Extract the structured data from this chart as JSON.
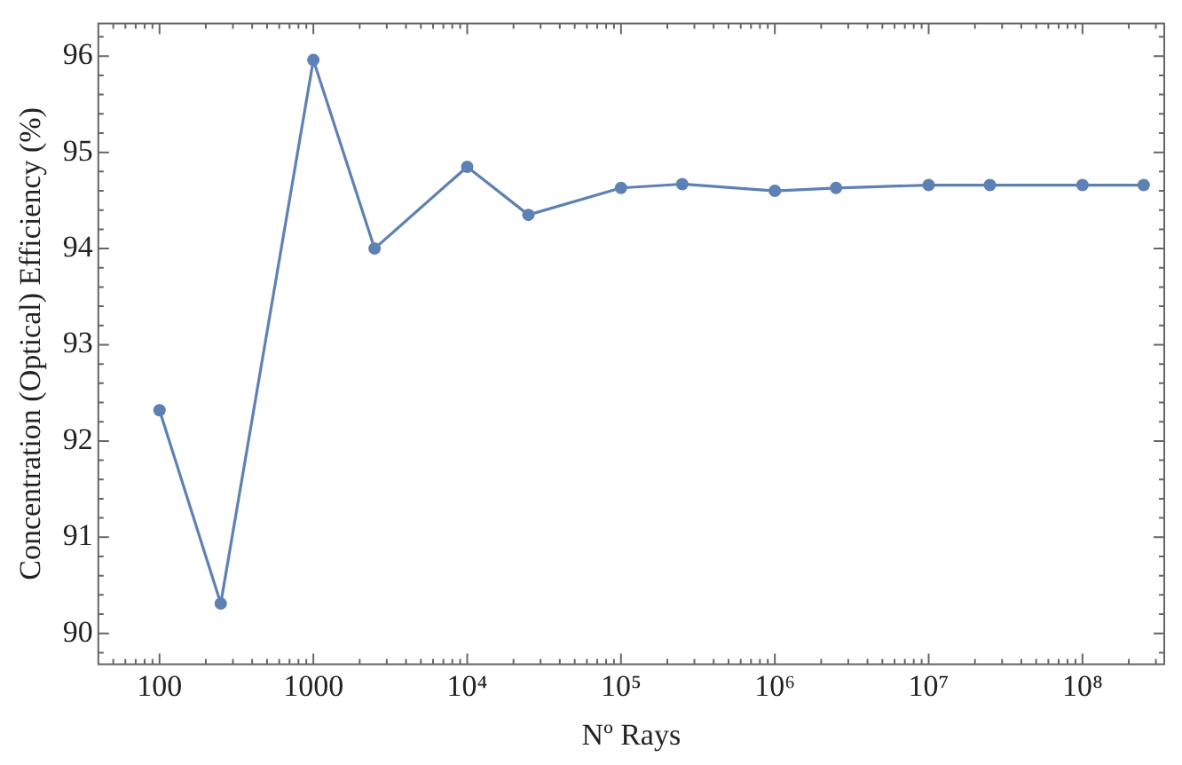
{
  "chart_data": {
    "type": "line",
    "xlabel": "Nº Rays",
    "ylabel": "Concentration (Optical) Efficiency (%)",
    "log": "x",
    "marker": "circle",
    "line_style": "solid",
    "grid": false,
    "legend": false,
    "x": [
      100,
      250,
      1000,
      2500,
      10000,
      25000,
      100000,
      250000,
      1000000,
      2500000,
      10000000,
      25000000,
      100000000,
      250000000
    ],
    "series": [
      {
        "color": "#5e81b5",
        "values": [
          92.32,
          90.31,
          95.96,
          94.0,
          94.85,
          94.35,
          94.63,
          94.67,
          94.6,
          94.63,
          94.66,
          94.66,
          94.66,
          94.66
        ]
      }
    ],
    "xlim": [
      40,
      340000000
    ],
    "xticks": [
      {
        "value": 50,
        "label": null
      },
      {
        "value": 60,
        "label": null
      },
      {
        "value": 70,
        "label": null
      },
      {
        "value": 80,
        "label": null
      },
      {
        "value": 90,
        "label": null
      },
      100,
      {
        "value": 200,
        "label": null
      },
      {
        "value": 300,
        "label": null
      },
      {
        "value": 400,
        "label": null
      },
      {
        "value": 500,
        "label": null
      },
      {
        "value": 600,
        "label": null
      },
      {
        "value": 700,
        "label": null
      },
      {
        "value": 800,
        "label": null
      },
      {
        "value": 900,
        "label": null
      },
      1000,
      {
        "value": 2000,
        "label": null
      },
      {
        "value": 3000,
        "label": null
      },
      {
        "value": 4000,
        "label": null
      },
      {
        "value": 5000,
        "label": null
      },
      {
        "value": 6000,
        "label": null
      },
      {
        "value": 7000,
        "label": null
      },
      {
        "value": 8000,
        "label": null
      },
      {
        "value": 9000,
        "label": null
      },
      {
        "value": 10000,
        "label": "10⁴"
      },
      {
        "value": 20000,
        "label": null
      },
      {
        "value": 30000,
        "label": null
      },
      {
        "value": 40000,
        "label": null
      },
      {
        "value": 50000,
        "label": null
      },
      {
        "value": 60000,
        "label": null
      },
      {
        "value": 70000,
        "label": null
      },
      {
        "value": 80000,
        "label": null
      },
      {
        "value": 90000,
        "label": null
      },
      {
        "value": 100000,
        "label": "10⁵"
      },
      {
        "value": 200000,
        "label": null
      },
      {
        "value": 300000,
        "label": null
      },
      {
        "value": 400000,
        "label": null
      },
      {
        "value": 500000,
        "label": null
      },
      {
        "value": 600000,
        "label": null
      },
      {
        "value": 700000,
        "label": null
      },
      {
        "value": 800000,
        "label": null
      },
      {
        "value": 900000,
        "label": null
      },
      {
        "value": 1000000,
        "label": "10⁶"
      },
      {
        "value": 2000000,
        "label": null
      },
      {
        "value": 3000000,
        "label": null
      },
      {
        "value": 4000000,
        "label": null
      },
      {
        "value": 5000000,
        "label": null
      },
      {
        "value": 6000000,
        "label": null
      },
      {
        "value": 7000000,
        "label": null
      },
      {
        "value": 8000000,
        "label": null
      },
      {
        "value": 9000000,
        "label": null
      },
      {
        "value": 10000000,
        "label": "10⁷"
      },
      {
        "value": 20000000,
        "label": null
      },
      {
        "value": 30000000,
        "label": null
      },
      {
        "value": 40000000,
        "label": null
      },
      {
        "value": 50000000,
        "label": null
      },
      {
        "value": 60000000,
        "label": null
      },
      {
        "value": 70000000,
        "label": null
      },
      {
        "value": 80000000,
        "label": null
      },
      {
        "value": 90000000,
        "label": null
      },
      {
        "value": 100000000,
        "label": "10⁸"
      },
      {
        "value": 200000000,
        "label": null
      },
      {
        "value": 300000000,
        "label": null
      }
    ],
    "ylim": [
      89.68,
      96.34
    ],
    "yticks": [
      {
        "value": 89.8,
        "label": null
      },
      90,
      {
        "value": 90.2,
        "label": null
      },
      {
        "value": 90.4,
        "label": null
      },
      {
        "value": 90.6,
        "label": null
      },
      {
        "value": 90.8,
        "label": null
      },
      91,
      {
        "value": 91.2,
        "label": null
      },
      {
        "value": 91.4,
        "label": null
      },
      {
        "value": 91.6,
        "label": null
      },
      {
        "value": 91.8,
        "label": null
      },
      92,
      {
        "value": 92.2,
        "label": null
      },
      {
        "value": 92.4,
        "label": null
      },
      {
        "value": 92.6,
        "label": null
      },
      {
        "value": 92.8,
        "label": null
      },
      93,
      {
        "value": 93.2,
        "label": null
      },
      {
        "value": 93.4,
        "label": null
      },
      {
        "value": 93.6,
        "label": null
      },
      {
        "value": 93.8,
        "label": null
      },
      94,
      {
        "value": 94.2,
        "label": null
      },
      {
        "value": 94.4,
        "label": null
      },
      {
        "value": 94.6,
        "label": null
      },
      {
        "value": 94.8,
        "label": null
      },
      95,
      {
        "value": 95.2,
        "label": null
      },
      {
        "value": 95.4,
        "label": null
      },
      {
        "value": 95.6,
        "label": null
      },
      {
        "value": 95.8,
        "label": null
      },
      96,
      {
        "value": 96.2,
        "label": null
      }
    ]
  }
}
